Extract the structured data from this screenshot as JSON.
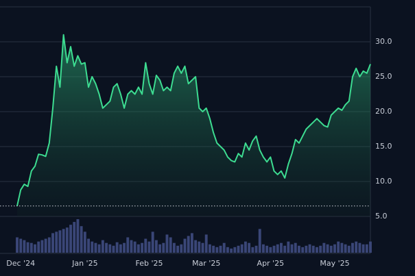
{
  "chart_data": {
    "type": "area",
    "categories": [
      null,
      "Dec '24",
      null,
      null,
      null,
      null,
      null,
      null,
      null,
      null,
      null,
      null,
      null,
      null,
      null,
      null,
      null,
      null,
      null,
      "Jan '25",
      null,
      null,
      null,
      null,
      null,
      null,
      null,
      null,
      null,
      null,
      null,
      null,
      null,
      null,
      null,
      null,
      null,
      "Feb '25",
      null,
      null,
      null,
      null,
      null,
      null,
      null,
      null,
      null,
      null,
      null,
      null,
      null,
      null,
      null,
      "Mar '25",
      null,
      null,
      null,
      null,
      null,
      null,
      null,
      null,
      null,
      null,
      null,
      null,
      null,
      null,
      null,
      null,
      null,
      "Apr '25",
      null,
      null,
      null,
      null,
      null,
      null,
      null,
      null,
      null,
      null,
      null,
      null,
      null,
      null,
      null,
      null,
      null,
      "May '25",
      null,
      null,
      null,
      null,
      null,
      null,
      null,
      null,
      null,
      null
    ],
    "values": [
      6.5,
      8.8,
      9.6,
      9.3,
      11.5,
      12.2,
      13.9,
      13.8,
      13.6,
      15.5,
      20.5,
      26.5,
      23.5,
      31.0,
      27.0,
      29.3,
      26.5,
      28.0,
      26.8,
      27.0,
      23.5,
      25.0,
      24.0,
      22.5,
      20.5,
      21.0,
      21.5,
      23.5,
      24.0,
      22.5,
      20.5,
      22.5,
      23.0,
      22.5,
      23.5,
      22.5,
      27.0,
      24.0,
      22.5,
      25.2,
      24.5,
      23.0,
      23.5,
      23.0,
      25.5,
      26.5,
      25.5,
      26.5,
      24.0,
      24.5,
      25.0,
      20.5,
      20.0,
      20.5,
      19.0,
      17.0,
      15.5,
      15.0,
      14.5,
      13.5,
      13.0,
      12.8,
      14.0,
      13.5,
      15.5,
      14.5,
      15.8,
      16.5,
      14.5,
      13.5,
      12.8,
      13.5,
      11.5,
      11.0,
      11.5,
      10.5,
      12.5,
      14.0,
      16.0,
      15.5,
      16.5,
      17.5,
      18.0,
      18.5,
      19.0,
      18.5,
      18.0,
      17.8,
      19.5,
      20.0,
      20.5,
      20.2,
      21.0,
      21.5,
      25.0,
      26.2,
      25.0,
      25.8,
      25.5,
      26.8
    ],
    "color": "#3ddc91",
    "reference_line": 6.5,
    "volume": {
      "color": "#3a4677",
      "values": [
        22,
        20,
        18,
        15,
        14,
        12,
        16,
        18,
        20,
        22,
        28,
        30,
        32,
        34,
        36,
        40,
        44,
        48,
        38,
        30,
        20,
        16,
        14,
        12,
        18,
        14,
        12,
        10,
        15,
        12,
        14,
        22,
        18,
        16,
        12,
        14,
        20,
        16,
        30,
        18,
        12,
        14,
        26,
        22,
        14,
        10,
        12,
        20,
        24,
        28,
        18,
        16,
        14,
        26,
        12,
        10,
        8,
        10,
        14,
        8,
        6,
        8,
        10,
        12,
        16,
        14,
        8,
        10,
        34,
        12,
        10,
        8,
        10,
        12,
        14,
        10,
        16,
        12,
        14,
        10,
        8,
        10,
        12,
        10,
        8,
        10,
        14,
        12,
        10,
        12,
        16,
        14,
        12,
        10,
        14,
        16,
        14,
        12,
        12,
        16
      ]
    },
    "ylim": [
      5,
      35
    ],
    "yticks": [
      {
        "value": 5,
        "label": "5.0"
      },
      {
        "value": 10,
        "label": "10.0"
      },
      {
        "value": 15,
        "label": "15.0"
      },
      {
        "value": 20,
        "label": "20.0"
      },
      {
        "value": 25,
        "label": "25.0"
      },
      {
        "value": 30,
        "label": "30.0"
      }
    ],
    "grid": true
  }
}
